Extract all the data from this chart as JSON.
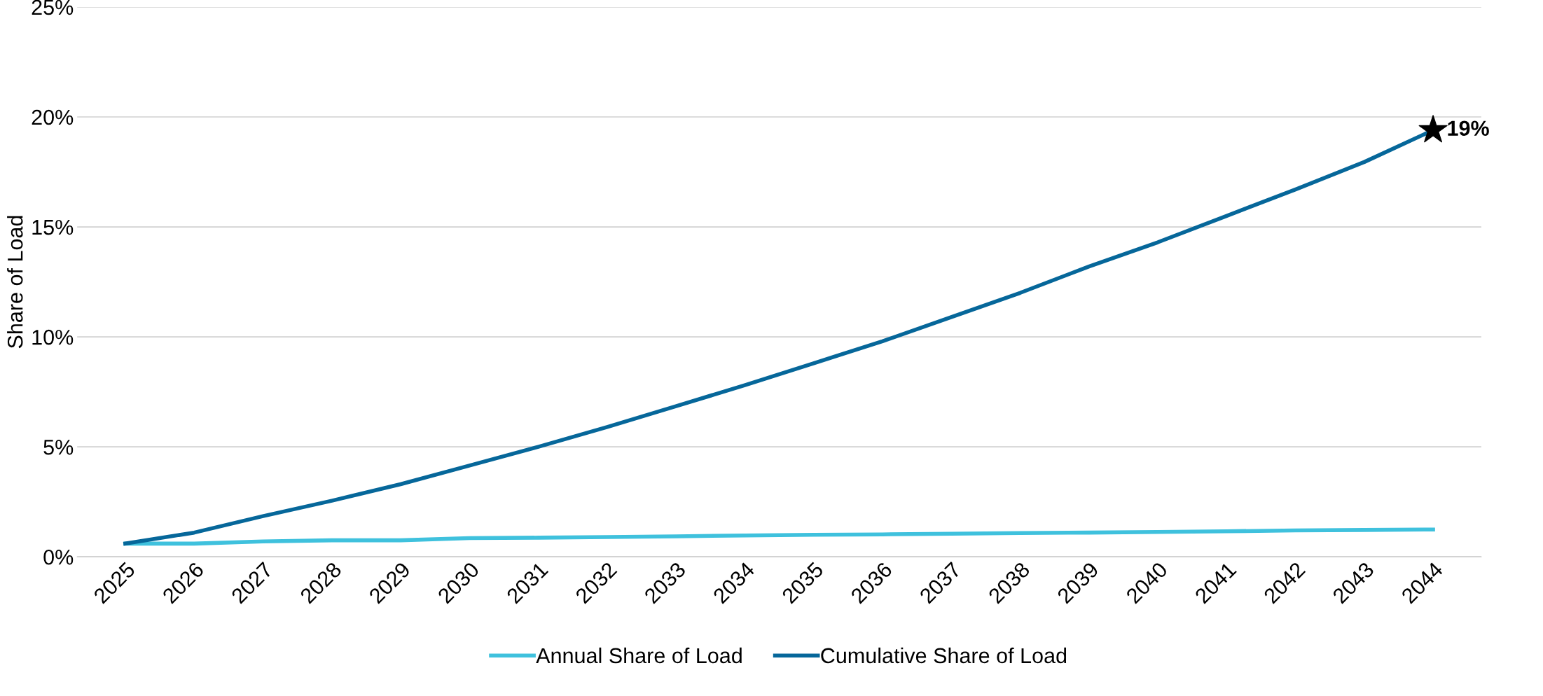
{
  "chart_data": {
    "type": "line",
    "ylabel": "Share of Load",
    "categories": [
      "2025",
      "2026",
      "2027",
      "2028",
      "2029",
      "2030",
      "2031",
      "2032",
      "2033",
      "2034",
      "2035",
      "2036",
      "2037",
      "2038",
      "2039",
      "2040",
      "2041",
      "2042",
      "2043",
      "2044"
    ],
    "series": [
      {
        "name": "Annual Share of Load",
        "color": "#3fc1dd",
        "values": [
          0.6,
          0.6,
          0.7,
          0.75,
          0.75,
          0.85,
          0.87,
          0.9,
          0.93,
          0.97,
          1.0,
          1.02,
          1.05,
          1.08,
          1.1,
          1.13,
          1.16,
          1.2,
          1.22,
          1.24
        ]
      },
      {
        "name": "Cumulative Share of Load",
        "color": "#06679a",
        "values": [
          0.6,
          1.1,
          1.85,
          2.55,
          3.3,
          4.15,
          5.0,
          5.9,
          6.85,
          7.8,
          8.8,
          9.8,
          10.9,
          12.0,
          13.2,
          14.3,
          15.5,
          16.7,
          17.95,
          19.4
        ]
      }
    ],
    "ylim": [
      0,
      25
    ],
    "yticks": [
      {
        "value": 0,
        "label": "0%"
      },
      {
        "value": 5,
        "label": "5%"
      },
      {
        "value": 10,
        "label": "10%"
      },
      {
        "value": 15,
        "label": "15%"
      },
      {
        "value": 20,
        "label": "20%"
      },
      {
        "value": 25,
        "label": "25%"
      }
    ],
    "annotations": [
      {
        "text": "19%",
        "x": "2044",
        "y": 19.4
      }
    ],
    "grid": "y",
    "legend": "bottom",
    "marker": "none",
    "line_style": "solid"
  }
}
